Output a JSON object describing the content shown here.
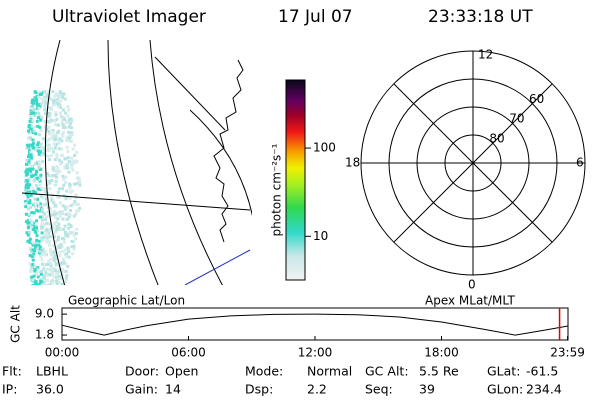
{
  "header": {
    "title": "Ultraviolet Imager",
    "date": "17 Jul 07",
    "time": "23:33:18 UT"
  },
  "colorbar": {
    "label": "photon cm⁻²s⁻¹",
    "log": true,
    "range": [
      3.2,
      590
    ],
    "ticks": [
      10,
      100
    ]
  },
  "polar": {
    "mlt_labels": [
      "12",
      "18",
      "6",
      "0"
    ],
    "lat_rings": [
      60,
      70,
      80
    ]
  },
  "panel_labels": {
    "left": "Geographic Lat/Lon",
    "right": "Apex MLat/MLT"
  },
  "chart_data": {
    "type": "line",
    "ylabel": "GC Alt",
    "x": [
      0,
      1,
      2,
      3,
      4,
      6,
      8,
      10,
      12,
      14,
      16,
      18,
      20,
      21.5,
      23,
      24
    ],
    "series": [
      {
        "name": "GC Alt",
        "color": "#000000",
        "values": [
          5.2,
          3.4,
          1.8,
          3.5,
          5.0,
          7.3,
          8.4,
          8.9,
          9.0,
          8.8,
          8.0,
          6.3,
          3.8,
          1.8,
          3.6,
          4.9
        ]
      }
    ],
    "xlim": [
      0,
      24
    ],
    "xticks": [
      {
        "value": 0,
        "label": "00:00"
      },
      {
        "value": 6,
        "label": "06:00"
      },
      {
        "value": 12,
        "label": "12:00"
      },
      {
        "value": 18,
        "label": "18:00"
      },
      {
        "value": 23.98,
        "label": "23:59"
      }
    ],
    "ylim": [
      0.1,
      11.1
    ],
    "yticks": [
      {
        "value": 9.0,
        "label": "9.0"
      },
      {
        "value": 1.8,
        "label": "1.8"
      }
    ],
    "marker_x": 23.6,
    "marker_color": "#e00000"
  },
  "info": [
    [
      [
        "Flt:",
        "LBHL"
      ],
      [
        "Door:",
        "Open"
      ],
      [
        "Mode:",
        "Normal"
      ],
      [
        "GC Alt:",
        "5.5 Re"
      ],
      [
        "GLat:",
        "-61.5"
      ]
    ],
    [
      [
        "IP:",
        "36.0"
      ],
      [
        "Gain:",
        "14"
      ],
      [
        "Dsp:",
        "2.2"
      ],
      [
        "Seq:",
        "39"
      ],
      [
        "GLon:",
        "234.4"
      ]
    ]
  ]
}
